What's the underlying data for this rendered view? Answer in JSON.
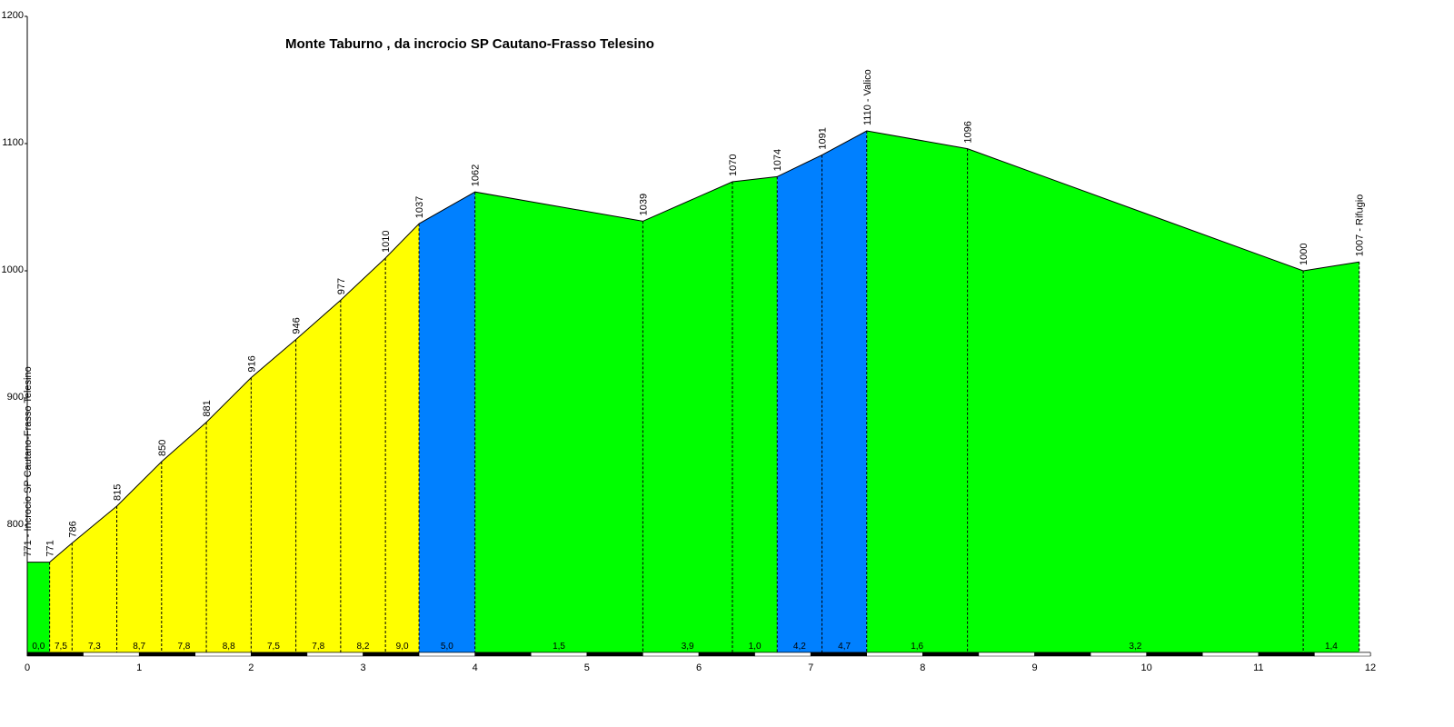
{
  "chart_data": {
    "type": "area",
    "title": "Monte Taburno , da incrocio SP Cautano-Frasso Telesino",
    "xlim": [
      0,
      12
    ],
    "ylim": [
      700,
      1200
    ],
    "x_ticks": [
      0,
      1,
      2,
      3,
      4,
      5,
      6,
      7,
      8,
      9,
      10,
      11,
      12
    ],
    "y_ticks": [
      800,
      900,
      1000,
      1100,
      1200
    ],
    "x_tick_labels": [
      "0",
      "1",
      "2",
      "3",
      "4",
      "5",
      "6",
      "7",
      "8",
      "9",
      "10",
      "11",
      "12"
    ],
    "y_tick_labels": [
      "800",
      "900",
      "1000",
      "1100",
      "1200"
    ],
    "colors": {
      "climb": "#ffff00",
      "moderate": "#0080ff",
      "flat": "#00ff00"
    },
    "profile": [
      {
        "x": 0.0,
        "y": 771,
        "label": "771 - Incrocio SP Cautano-Frasso Telesino"
      },
      {
        "x": 0.2,
        "y": 771,
        "label": "771"
      },
      {
        "x": 0.4,
        "y": 786,
        "label": "786"
      },
      {
        "x": 0.8,
        "y": 815,
        "label": "815"
      },
      {
        "x": 1.2,
        "y": 850,
        "label": "850"
      },
      {
        "x": 1.6,
        "y": 881,
        "label": "881"
      },
      {
        "x": 2.0,
        "y": 916,
        "label": "916"
      },
      {
        "x": 2.4,
        "y": 946,
        "label": "946"
      },
      {
        "x": 2.8,
        "y": 977,
        "label": "977"
      },
      {
        "x": 3.2,
        "y": 1010,
        "label": "1010"
      },
      {
        "x": 3.5,
        "y": 1037,
        "label": "1037"
      },
      {
        "x": 4.0,
        "y": 1062,
        "label": "1062"
      },
      {
        "x": 5.5,
        "y": 1039,
        "label": "1039"
      },
      {
        "x": 6.3,
        "y": 1070,
        "label": "1070"
      },
      {
        "x": 6.7,
        "y": 1074,
        "label": "1074"
      },
      {
        "x": 7.1,
        "y": 1091,
        "label": "1091"
      },
      {
        "x": 7.5,
        "y": 1110,
        "label": "1110 - Valico"
      },
      {
        "x": 8.4,
        "y": 1096,
        "label": "1096"
      },
      {
        "x": 11.4,
        "y": 1000,
        "label": "1000"
      },
      {
        "x": 11.9,
        "y": 1007,
        "label": "1007 - Rifugio"
      }
    ],
    "segments": [
      {
        "from": 0.0,
        "to": 0.2,
        "gradient": "0,0",
        "color": "flat"
      },
      {
        "from": 0.2,
        "to": 0.4,
        "gradient": "7,5",
        "color": "climb"
      },
      {
        "from": 0.4,
        "to": 0.8,
        "gradient": "7,3",
        "color": "climb"
      },
      {
        "from": 0.8,
        "to": 1.2,
        "gradient": "8,7",
        "color": "climb"
      },
      {
        "from": 1.2,
        "to": 1.6,
        "gradient": "7,8",
        "color": "climb"
      },
      {
        "from": 1.6,
        "to": 2.0,
        "gradient": "8,8",
        "color": "climb"
      },
      {
        "from": 2.0,
        "to": 2.4,
        "gradient": "7,5",
        "color": "climb"
      },
      {
        "from": 2.4,
        "to": 2.8,
        "gradient": "7,8",
        "color": "climb"
      },
      {
        "from": 2.8,
        "to": 3.2,
        "gradient": "8,2",
        "color": "climb"
      },
      {
        "from": 3.2,
        "to": 3.5,
        "gradient": "9,0",
        "color": "climb"
      },
      {
        "from": 3.5,
        "to": 4.0,
        "gradient": "5,0",
        "color": "moderate"
      },
      {
        "from": 4.0,
        "to": 5.5,
        "gradient": "1,5",
        "color": "flat"
      },
      {
        "from": 5.5,
        "to": 6.3,
        "gradient": "3,9",
        "color": "flat"
      },
      {
        "from": 6.3,
        "to": 6.7,
        "gradient": "1,0",
        "color": "flat"
      },
      {
        "from": 6.7,
        "to": 7.1,
        "gradient": "4,2",
        "color": "moderate"
      },
      {
        "from": 7.1,
        "to": 7.5,
        "gradient": "4,7",
        "color": "moderate"
      },
      {
        "from": 7.5,
        "to": 8.4,
        "gradient": "1,6",
        "color": "flat"
      },
      {
        "from": 8.4,
        "to": 11.4,
        "gradient": "3,2",
        "color": "flat"
      },
      {
        "from": 11.4,
        "to": 11.9,
        "gradient": "1,4",
        "color": "flat"
      }
    ]
  }
}
